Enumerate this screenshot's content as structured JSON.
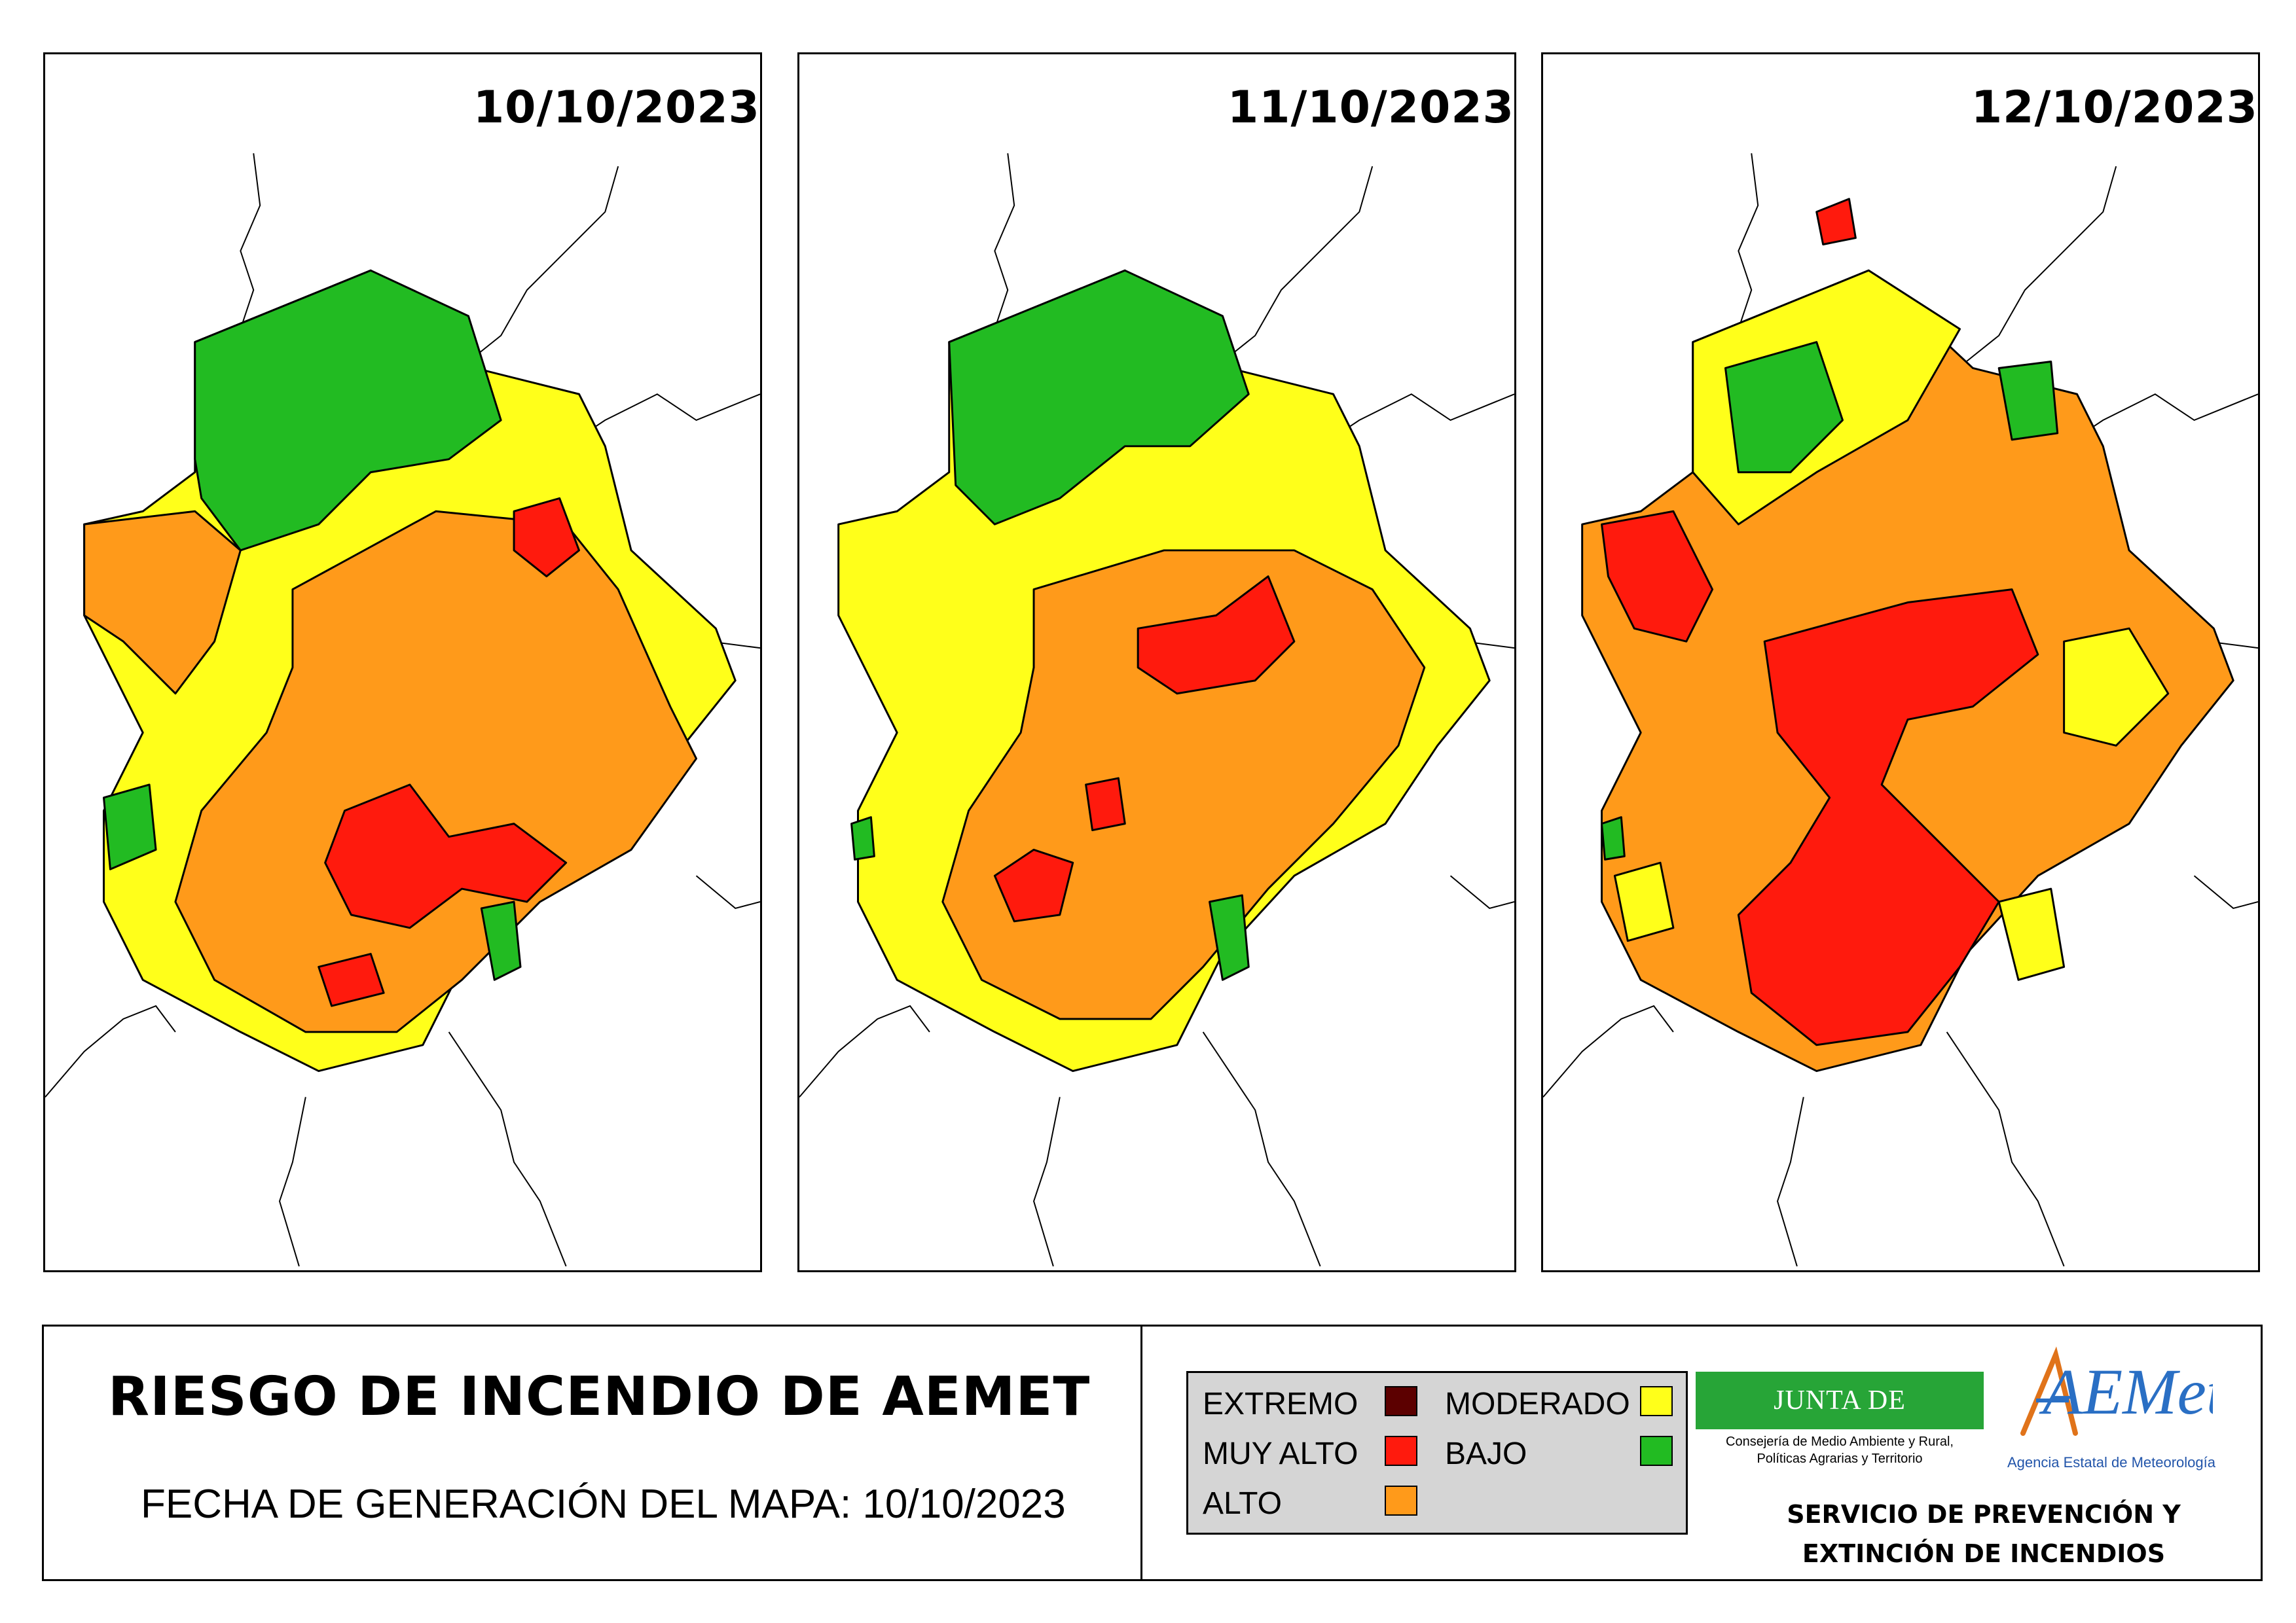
{
  "panels": [
    {
      "date": "10/10/2023"
    },
    {
      "date": "11/10/2023"
    },
    {
      "date": "12/10/2023"
    }
  ],
  "footer": {
    "title": "RIESGO DE INCENDIO DE AEMET",
    "generation_date": "FECHA DE GENERACIÓN DEL MAPA: 10/10/2023",
    "service_line1": "SERVICIO DE PREVENCIÓN Y",
    "service_line2": "EXTINCIÓN DE INCENDIOS"
  },
  "legend": {
    "extremo": {
      "label": "EXTREMO",
      "color": "#5c0000"
    },
    "muy_alto": {
      "label": "MUY ALTO",
      "color": "#ff1a0d"
    },
    "alto": {
      "label": "ALTO",
      "color": "#ff9a1a"
    },
    "moderado": {
      "label": "MODERADO",
      "color": "#ffff1a"
    },
    "bajo": {
      "label": "BAJO",
      "color": "#22bb22"
    }
  },
  "logos": {
    "junta_name": "JUNTA DE EXTREMADURA",
    "junta_sub1": "Consejería de Medio Ambiente y Rural,",
    "junta_sub2": "Políticas Agrarias y Territorio",
    "aemet_name": "AEMet",
    "aemet_sub": "Agencia Estatal de Meteorología"
  }
}
